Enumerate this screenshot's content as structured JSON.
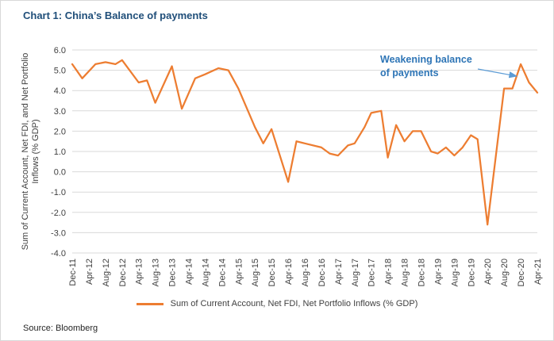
{
  "figure": {
    "title": "Chart 1: China’s Balance of payments",
    "source": "Source: Bloomberg"
  },
  "chart_data": {
    "type": "line",
    "title": "Chart 1: China’s Balance of payments",
    "ylabel_line1": "Sum of Current Account, Net FDI, and Net Portfolio",
    "ylabel_line2": "Inflows (% GDP)",
    "xlabel": "",
    "ylim": [
      -4.0,
      6.0
    ],
    "y_ticks": [
      6.0,
      5.0,
      4.0,
      3.0,
      2.0,
      1.0,
      0.0,
      -1.0,
      -2.0,
      -3.0,
      -4.0
    ],
    "grid": true,
    "legend_position": "bottom",
    "x_tick_labels": [
      "Dec-11",
      "Apr-12",
      "Aug-12",
      "Dec-12",
      "Apr-13",
      "Aug-13",
      "Dec-13",
      "Apr-14",
      "Aug-14",
      "Dec-14",
      "Apr-15",
      "Aug-15",
      "Dec-15",
      "Apr-16",
      "Aug-16",
      "Dec-16",
      "Apr-17",
      "Aug-17",
      "Dec-17",
      "Apr-18",
      "Aug-18",
      "Dec-18",
      "Apr-19",
      "Aug-19",
      "Dec-19",
      "Apr-20",
      "Aug-20",
      "Dec-20",
      "Apr-21"
    ],
    "x_points_unit": "fractional index into x_tick_labels",
    "series": [
      {
        "name": "Sum of Current Account, Net FDI, Net Portfolio Inflows (% GDP)",
        "color": "#ED7D31",
        "points": [
          [
            0,
            5.3
          ],
          [
            0.6,
            4.6
          ],
          [
            1.4,
            5.3
          ],
          [
            2,
            5.4
          ],
          [
            2.6,
            5.3
          ],
          [
            3,
            5.5
          ],
          [
            4,
            4.4
          ],
          [
            4.5,
            4.5
          ],
          [
            5,
            3.4
          ],
          [
            6,
            5.2
          ],
          [
            6.6,
            3.1
          ],
          [
            7.4,
            4.6
          ],
          [
            8,
            4.8
          ],
          [
            8.8,
            5.1
          ],
          [
            9.4,
            5.0
          ],
          [
            10,
            4.1
          ],
          [
            11,
            2.2
          ],
          [
            11.5,
            1.4
          ],
          [
            12,
            2.1
          ],
          [
            13,
            -0.5
          ],
          [
            13.5,
            1.5
          ],
          [
            14,
            1.4
          ],
          [
            15,
            1.2
          ],
          [
            15.5,
            0.9
          ],
          [
            16,
            0.8
          ],
          [
            16.6,
            1.3
          ],
          [
            17,
            1.4
          ],
          [
            17.6,
            2.2
          ],
          [
            18,
            2.9
          ],
          [
            18.6,
            3.0
          ],
          [
            19,
            0.7
          ],
          [
            19.5,
            2.3
          ],
          [
            20,
            1.5
          ],
          [
            20.5,
            2.0
          ],
          [
            21,
            2.0
          ],
          [
            21.6,
            1.0
          ],
          [
            22,
            0.9
          ],
          [
            22.5,
            1.2
          ],
          [
            23,
            0.8
          ],
          [
            23.5,
            1.2
          ],
          [
            24,
            1.8
          ],
          [
            24.4,
            1.6
          ],
          [
            25,
            -2.6
          ],
          [
            26,
            4.1
          ],
          [
            26.5,
            4.1
          ],
          [
            27,
            5.3
          ],
          [
            27.5,
            4.4
          ],
          [
            28,
            3.9
          ]
        ]
      }
    ],
    "annotation": {
      "text_lines": [
        "Weakening balance",
        "of payments"
      ],
      "color": "#2E75B6",
      "arrow_color": "#5B9BD5"
    }
  },
  "style": {
    "grid_color": "#D9D9D9",
    "tick_label_color": "#404040",
    "title_color": "#1F4E79"
  }
}
